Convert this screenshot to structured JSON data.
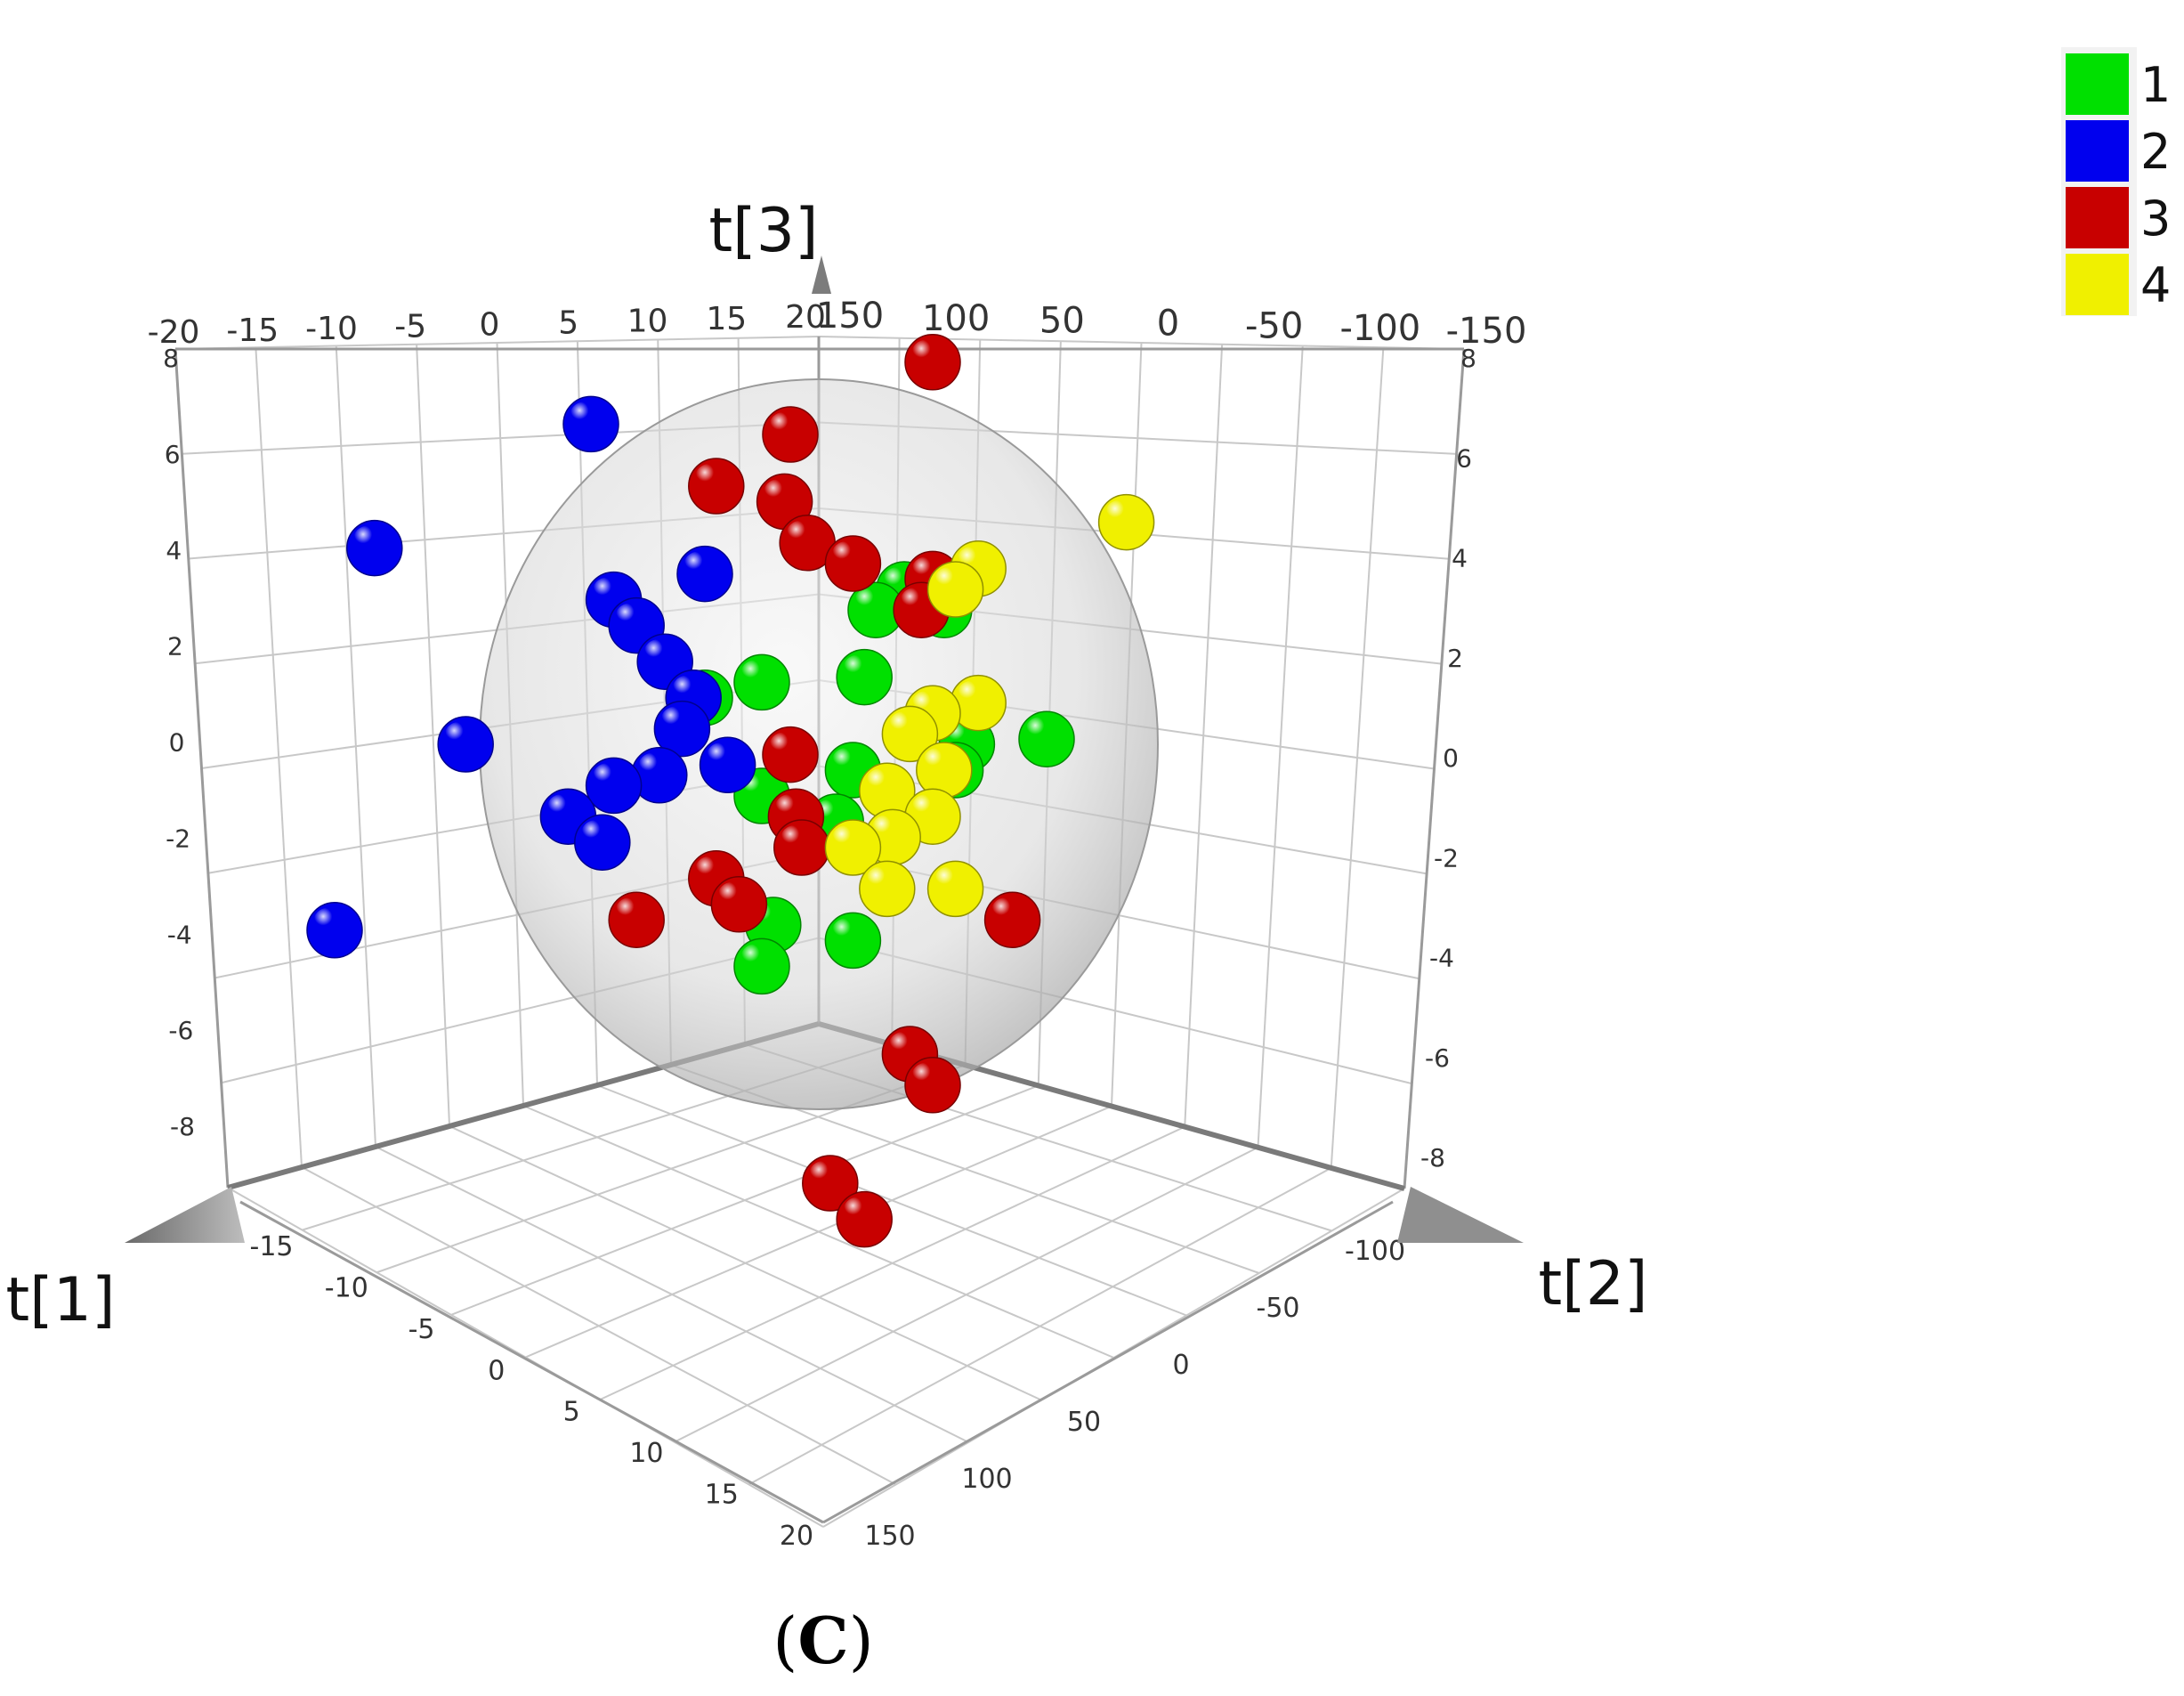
{
  "chart_data": {
    "type": "scatter",
    "subtype": "3d-score-plot",
    "panel_label_open": "(",
    "panel_label_letter": "C",
    "panel_label_close": ")",
    "axes": {
      "x": {
        "title": "t[1]",
        "range": [
          -20,
          20
        ],
        "ticks": [
          "-20",
          "-15",
          "-10",
          "-5",
          "0",
          "5",
          "10",
          "15",
          "20"
        ]
      },
      "y": {
        "title": "t[2]",
        "range": [
          -150,
          150
        ],
        "ticks": [
          "-150",
          "-100",
          "-50",
          "0",
          "50",
          "100",
          "150"
        ]
      },
      "z": {
        "title": "t[3]",
        "range": [
          -8,
          8
        ],
        "ticks": [
          "-8",
          "-6",
          "-4",
          "-2",
          "0",
          "2",
          "4",
          "6",
          "8"
        ]
      }
    },
    "top_ticks_left": [
      "-20",
      "-15",
      "-10",
      "-5",
      "0",
      "5",
      "10",
      "15",
      "20"
    ],
    "top_ticks_right": [
      "150",
      "100",
      "50",
      "0",
      "-50",
      "-100",
      "-150"
    ],
    "left_ticks": [
      "8",
      "6",
      "4",
      "2",
      "0",
      "-2",
      "-4",
      "-6",
      "-8"
    ],
    "right_ticks": [
      "8",
      "6",
      "4",
      "2",
      "0",
      "-2",
      "-4",
      "-6",
      "-8"
    ],
    "floor_left_ticks": [
      "-15",
      "-10",
      "-5",
      "0",
      "5",
      "10",
      "15",
      "20"
    ],
    "floor_right_ticks": [
      "-100",
      "-50",
      "0",
      "50",
      "100",
      "150"
    ],
    "confidence_ellipsoid": true,
    "grid": true,
    "legend_position": "top-right",
    "legend": [
      {
        "name": "1",
        "color": "#00e000"
      },
      {
        "name": "2",
        "color": "#0000ee"
      },
      {
        "name": "3",
        "color": "#c80000"
      },
      {
        "name": "4",
        "color": "#f0f000"
      }
    ],
    "series": [
      {
        "name": "1",
        "color": "#00e000",
        "points": [
          [
            1.5,
            3.0
          ],
          [
            2.2,
            2.6
          ],
          [
            1.0,
            2.6
          ],
          [
            -1.0,
            1.2
          ],
          [
            0.8,
            1.3
          ],
          [
            -2.0,
            0.9
          ],
          [
            2.6,
            0.0
          ],
          [
            4.0,
            0.1
          ],
          [
            0.6,
            -0.5
          ],
          [
            2.4,
            -0.5
          ],
          [
            -1.0,
            -1.0
          ],
          [
            0.3,
            -1.5
          ],
          [
            -0.8,
            -3.5
          ],
          [
            0.6,
            -3.8
          ],
          [
            -1.0,
            -4.3
          ]
        ]
      },
      {
        "name": "2",
        "color": "#0000ee",
        "points": [
          [
            -4.0,
            6.2
          ],
          [
            -7.8,
            3.8
          ],
          [
            -2.0,
            3.3
          ],
          [
            -3.6,
            2.8
          ],
          [
            -3.2,
            2.3
          ],
          [
            -2.7,
            1.6
          ],
          [
            -2.2,
            0.9
          ],
          [
            -6.2,
            0.0
          ],
          [
            -2.4,
            0.3
          ],
          [
            -1.6,
            -0.4
          ],
          [
            -2.8,
            -0.6
          ],
          [
            -3.6,
            -0.8
          ],
          [
            -4.4,
            -1.4
          ],
          [
            -3.8,
            -1.9
          ],
          [
            -8.5,
            -3.6
          ]
        ]
      },
      {
        "name": "3",
        "color": "#c80000",
        "points": [
          [
            2.0,
            7.4
          ],
          [
            -0.5,
            6.0
          ],
          [
            -1.8,
            5.0
          ],
          [
            -0.6,
            4.7
          ],
          [
            -0.2,
            3.9
          ],
          [
            0.6,
            3.5
          ],
          [
            2.0,
            3.2
          ],
          [
            1.8,
            2.6
          ],
          [
            -0.5,
            -0.2
          ],
          [
            -0.4,
            -1.4
          ],
          [
            -0.3,
            -2.0
          ],
          [
            -1.8,
            -2.6
          ],
          [
            -1.4,
            -3.1
          ],
          [
            -3.2,
            -3.4
          ],
          [
            3.4,
            -3.4
          ],
          [
            1.6,
            -6.0
          ],
          [
            2.0,
            -6.6
          ],
          [
            0.2,
            -8.5
          ],
          [
            0.8,
            -9.2
          ]
        ]
      },
      {
        "name": "4",
        "color": "#f0f000",
        "points": [
          [
            5.4,
            4.3
          ],
          [
            2.8,
            3.4
          ],
          [
            2.4,
            3.0
          ],
          [
            2.8,
            0.8
          ],
          [
            2.0,
            0.6
          ],
          [
            1.6,
            0.2
          ],
          [
            2.2,
            -0.5
          ],
          [
            1.2,
            -0.9
          ],
          [
            2.0,
            -1.4
          ],
          [
            1.3,
            -1.8
          ],
          [
            0.6,
            -2.0
          ],
          [
            1.2,
            -2.8
          ],
          [
            2.4,
            -2.8
          ]
        ]
      }
    ]
  }
}
